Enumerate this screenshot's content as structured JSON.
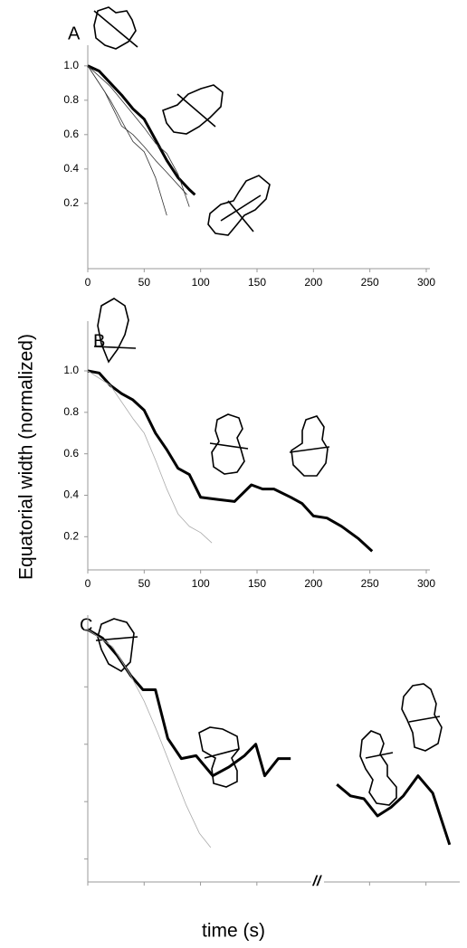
{
  "y_label": "Equatorial width (normalized)",
  "x_label": "time (s)",
  "chart_data": [
    {
      "type": "line",
      "title": "A",
      "xlim": [
        0,
        300
      ],
      "ylim": [
        -0.18,
        1.12
      ],
      "xticks": [
        0,
        50,
        100,
        150,
        200,
        250,
        300
      ],
      "yticks": [
        0.2,
        0.4,
        0.6,
        0.8,
        {
          "value": 1,
          "label": "1.0"
        }
      ],
      "tick_labels": true,
      "series": [
        {
          "color": "#000000",
          "width": 3,
          "x": [
            0,
            10,
            20,
            30,
            40,
            50,
            60,
            70,
            80,
            90,
            95
          ],
          "values": [
            1.0,
            0.97,
            0.9,
            0.83,
            0.75,
            0.69,
            0.57,
            0.45,
            0.35,
            0.28,
            0.25
          ]
        },
        {
          "color": "#333333",
          "width": 0.8,
          "x": [
            0,
            20,
            40,
            50,
            60,
            70
          ],
          "values": [
            1.0,
            0.8,
            0.56,
            0.5,
            0.35,
            0.13
          ]
        },
        {
          "color": "#333333",
          "width": 0.8,
          "x": [
            0,
            20,
            40,
            50,
            60,
            70,
            80,
            90
          ],
          "values": [
            1.0,
            0.88,
            0.72,
            0.64,
            0.55,
            0.49,
            0.37,
            0.18
          ]
        },
        {
          "color": "#333333",
          "width": 0.8,
          "x": [
            0,
            15,
            30,
            40,
            50,
            60,
            70,
            88
          ],
          "values": [
            1.0,
            0.85,
            0.65,
            0.6,
            0.53,
            0.45,
            0.38,
            0.25
          ]
        }
      ]
    },
    {
      "type": "line",
      "title": "B",
      "xlim": [
        0,
        300
      ],
      "ylim": [
        0.04,
        1.24
      ],
      "xticks": [
        0,
        50,
        100,
        150,
        200,
        250,
        300
      ],
      "yticks": [
        0.2,
        0.4,
        0.6,
        0.8,
        {
          "value": 1,
          "label": "1.0"
        }
      ],
      "tick_labels": true,
      "series": [
        {
          "color": "#000000",
          "width": 3,
          "x": [
            0,
            10,
            20,
            30,
            40,
            50,
            60,
            70,
            80,
            90,
            100,
            115,
            130,
            145,
            155,
            165,
            180,
            190,
            200,
            212,
            225,
            240,
            252
          ],
          "values": [
            1.0,
            0.99,
            0.93,
            0.89,
            0.86,
            0.81,
            0.7,
            0.62,
            0.53,
            0.5,
            0.39,
            0.38,
            0.37,
            0.45,
            0.43,
            0.43,
            0.39,
            0.36,
            0.3,
            0.29,
            0.25,
            0.19,
            0.13
          ]
        },
        {
          "color": "#aaaaaa",
          "width": 0.8,
          "x": [
            0,
            20,
            40,
            50,
            60,
            70,
            80,
            90,
            100,
            110
          ],
          "values": [
            1.0,
            0.93,
            0.77,
            0.7,
            0.57,
            0.43,
            0.31,
            0.25,
            0.22,
            0.17
          ]
        }
      ]
    },
    {
      "type": "line",
      "title": "C",
      "xlim": [
        0,
        330
      ],
      "ylim": [
        0.12,
        1.05
      ],
      "xticks": [
        0,
        50,
        100,
        150,
        250,
        300
      ],
      "yticks": [
        0.2,
        0.4,
        0.6,
        0.8,
        1.0
      ],
      "tick_labels": false,
      "axis_break": "//",
      "series": [
        {
          "color": "#000000",
          "width": 3,
          "x": [
            0,
            13,
            26,
            38,
            49,
            60,
            71,
            83,
            96,
            111,
            125,
            139,
            149,
            157,
            169,
            180,
            200,
            221,
            233,
            245,
            257,
            269,
            280,
            293,
            306,
            321
          ],
          "values": [
            1.0,
            0.97,
            0.91,
            0.84,
            0.79,
            0.79,
            0.62,
            0.55,
            0.56,
            0.49,
            0.52,
            0.56,
            0.6,
            0.49,
            0.55,
            0.55,
            null,
            0.46,
            0.42,
            0.41,
            0.35,
            0.38,
            0.42,
            0.49,
            0.43,
            0.25
          ]
        },
        {
          "color": "#aaaaaa",
          "width": 0.8,
          "x": [
            0,
            22,
            38,
            50,
            62,
            75,
            87,
            99,
            109
          ],
          "values": [
            1.0,
            0.94,
            0.84,
            0.75,
            0.64,
            0.51,
            0.39,
            0.29,
            0.24
          ]
        }
      ]
    }
  ]
}
